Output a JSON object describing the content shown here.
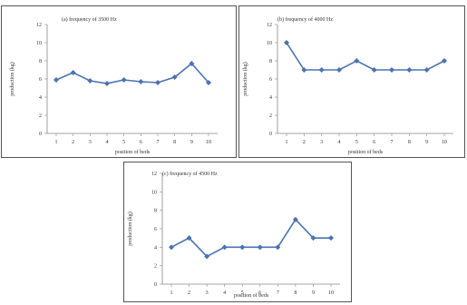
{
  "chart_data": [
    {
      "type": "line",
      "title": "(a) frequency of 3500 Hz",
      "xlabel": "position of beds",
      "ylabel": "production (kg)",
      "x": [
        1,
        2,
        3,
        4,
        5,
        6,
        7,
        8,
        9,
        10
      ],
      "values": [
        5.9,
        6.7,
        5.8,
        5.5,
        5.9,
        5.7,
        5.6,
        6.2,
        7.7,
        5.6
      ],
      "ylim": [
        0,
        12
      ],
      "yticks": [
        0,
        2,
        4,
        6,
        8,
        10,
        12
      ],
      "grid": false,
      "color": "#4a73b0"
    },
    {
      "type": "line",
      "title": "(b) frequency of 4000 Hz",
      "xlabel": "position of beds",
      "ylabel": "production (kg)",
      "x": [
        1,
        2,
        3,
        4,
        5,
        6,
        7,
        8,
        9,
        10
      ],
      "values": [
        10,
        7,
        7,
        7,
        8,
        7,
        7,
        7,
        7,
        8
      ],
      "ylim": [
        0,
        12
      ],
      "yticks": [
        0,
        2,
        4,
        6,
        8,
        10,
        12
      ],
      "grid": false,
      "color": "#4a73b0"
    },
    {
      "type": "line",
      "title": "(c) frequency of 4500 Hz",
      "xlabel": "position of beds",
      "ylabel": "production (kg)",
      "x": [
        1,
        2,
        3,
        4,
        5,
        6,
        7,
        8,
        9,
        10
      ],
      "values": [
        4,
        5,
        3,
        4,
        4,
        4,
        4,
        7,
        5,
        5
      ],
      "ylim": [
        0,
        12
      ],
      "yticks": [
        0,
        2,
        4,
        6,
        8,
        10,
        12
      ],
      "grid": false,
      "color": "#4a73b0"
    }
  ]
}
